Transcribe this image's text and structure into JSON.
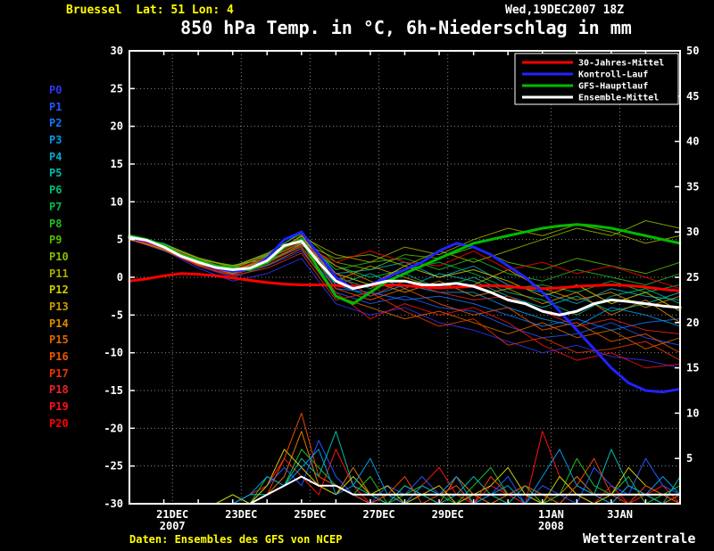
{
  "header": {
    "station": "Bruessel  Lat: 51 Lon: 4",
    "datetime": "Wed,19DEC2007 18Z",
    "title": "850 hPa Temp. in °C, 6h-Niederschlag in mm"
  },
  "footer": {
    "source": "Daten: Ensembles des GFS von NCEP",
    "brand": "Wetterzentrale"
  },
  "chart_data": {
    "type": "line",
    "title": "850 hPa Temp. in °C, 6h-Niederschlag in mm",
    "x_start": "19DEC2007 18Z",
    "x_range_days": [
      0,
      16
    ],
    "x_ticks": [
      {
        "day": 1.25,
        "label": "21DEC",
        "sub": "2007"
      },
      {
        "day": 3.25,
        "label": "23DEC",
        "sub": ""
      },
      {
        "day": 5.25,
        "label": "25DEC",
        "sub": ""
      },
      {
        "day": 7.25,
        "label": "27DEC",
        "sub": ""
      },
      {
        "day": 9.25,
        "label": "29DEC",
        "sub": ""
      },
      {
        "day": 12.25,
        "label": "1JAN",
        "sub": "2008"
      },
      {
        "day": 14.25,
        "label": "3JAN",
        "sub": ""
      }
    ],
    "temp_axis": {
      "side": "left",
      "min": -30,
      "max": 30,
      "step": 5,
      "tick_labels": [
        "30",
        "25",
        "20",
        "15",
        "10",
        "5",
        "0",
        "-5",
        "-10",
        "-15",
        "-20",
        "-25",
        "-30"
      ]
    },
    "precip_axis": {
      "side": "right",
      "min": 0,
      "max": 50,
      "step": 5,
      "tick_labels": [
        "50",
        "45",
        "40",
        "35",
        "30",
        "25",
        "20",
        "15",
        "10",
        "5"
      ]
    },
    "grid": {
      "color": "#888888",
      "dotted": true
    },
    "main_series": [
      {
        "name": "30-Jahres-Mittel",
        "color": "#ff0000",
        "width": 3,
        "interval_h": 12,
        "values": [
          -0.5,
          -0.2,
          0.2,
          0.5,
          0.4,
          0.2,
          -0.1,
          -0.4,
          -0.7,
          -0.9,
          -1.0,
          -1.0,
          -1.1,
          -1.2,
          -1.1,
          -1.0,
          -1.1,
          -1.3,
          -1.4,
          -1.3,
          -1.2,
          -1.1,
          -1.2,
          -1.4,
          -1.5,
          -1.4,
          -1.2,
          -1.1,
          -1.0,
          -1.1,
          -1.3,
          -1.6,
          -1.8
        ]
      },
      {
        "name": "Kontroll-Lauf",
        "color": "#2222ff",
        "width": 3,
        "interval_h": 12,
        "values": [
          5.2,
          4.8,
          4.0,
          3.0,
          2.0,
          1.2,
          0.8,
          1.0,
          2.5,
          5.0,
          6.0,
          3.0,
          0.0,
          -1.5,
          -1.0,
          0.0,
          1.0,
          2.0,
          3.5,
          4.5,
          4.0,
          3.0,
          1.5,
          0.0,
          -2.0,
          -4.5,
          -7.0,
          -9.5,
          -12.0,
          -14.0,
          -15.0,
          -15.2,
          -14.8
        ]
      },
      {
        "name": "GFS-Hauptlauf",
        "color": "#00bb00",
        "width": 3,
        "interval_h": 12,
        "values": [
          5.5,
          5.0,
          4.2,
          3.0,
          2.2,
          1.5,
          1.2,
          1.0,
          2.0,
          4.0,
          5.0,
          1.0,
          -2.5,
          -3.5,
          -2.0,
          -0.5,
          0.5,
          1.5,
          2.5,
          3.5,
          4.5,
          5.0,
          5.5,
          6.0,
          6.5,
          6.8,
          7.0,
          6.8,
          6.5,
          6.0,
          5.5,
          5.0,
          4.5
        ]
      },
      {
        "name": "Ensemble-Mittel",
        "color": "#ffffff",
        "width": 3,
        "interval_h": 12,
        "values": [
          5.3,
          4.9,
          4.0,
          2.8,
          2.0,
          1.3,
          1.0,
          1.2,
          2.2,
          4.2,
          4.8,
          2.0,
          -0.5,
          -1.5,
          -1.0,
          -0.5,
          -0.5,
          -1.0,
          -1.0,
          -0.8,
          -1.2,
          -2.0,
          -3.0,
          -3.5,
          -4.5,
          -5.0,
          -4.5,
          -3.5,
          -3.0,
          -3.2,
          -3.5,
          -3.8,
          -4.0
        ]
      }
    ],
    "member_series": [
      {
        "name": "P0",
        "color": "#3333ff",
        "interval_h": 24,
        "values": [
          5.0,
          3.6,
          1.2,
          -0.5,
          0.5,
          2.5,
          -3.5,
          -5.0,
          -4.0,
          -6.0,
          -7.0,
          -8.5,
          -10.0,
          -9.0,
          -10.5,
          -11.0,
          -12.0
        ]
      },
      {
        "name": "P1",
        "color": "#2255ff",
        "interval_h": 24,
        "values": [
          5.2,
          3.8,
          1.5,
          0.0,
          1.5,
          3.5,
          -2.0,
          -3.5,
          -2.5,
          -4.0,
          -4.5,
          -6.5,
          -8.0,
          -7.5,
          -6.0,
          -8.0,
          -9.0
        ]
      },
      {
        "name": "P2",
        "color": "#1177ff",
        "interval_h": 24,
        "values": [
          5.1,
          3.5,
          1.8,
          0.5,
          2.0,
          4.0,
          -1.5,
          -2.0,
          -3.0,
          -2.5,
          -3.5,
          -5.0,
          -6.5,
          -5.5,
          -7.0,
          -6.0,
          -5.5
        ]
      },
      {
        "name": "P3",
        "color": "#0099ee",
        "interval_h": 24,
        "values": [
          5.4,
          4.2,
          2.2,
          0.8,
          2.5,
          5.5,
          -1.0,
          -2.5,
          -1.0,
          -2.0,
          -2.0,
          -4.0,
          -5.5,
          -6.5,
          -4.0,
          -5.0,
          -6.5
        ]
      },
      {
        "name": "P4",
        "color": "#00aacc",
        "interval_h": 24,
        "values": [
          5.3,
          4.5,
          2.5,
          1.5,
          3.0,
          6.0,
          0.5,
          1.0,
          2.0,
          0.0,
          1.5,
          -1.0,
          -2.0,
          -3.5,
          -1.5,
          -2.5,
          -3.0
        ]
      },
      {
        "name": "P5",
        "color": "#00bbaa",
        "interval_h": 24,
        "values": [
          5.0,
          3.9,
          1.9,
          0.5,
          1.8,
          4.5,
          -1.0,
          0.5,
          -1.5,
          0.5,
          -0.5,
          -2.5,
          -4.0,
          -2.5,
          -4.5,
          -3.5,
          -2.0
        ]
      },
      {
        "name": "P6",
        "color": "#00bb77",
        "interval_h": 24,
        "values": [
          5.2,
          4.1,
          2.1,
          1.2,
          2.8,
          5.0,
          0.0,
          -1.5,
          0.5,
          -1.5,
          0.0,
          -2.0,
          -3.0,
          -5.0,
          -2.5,
          -1.5,
          -3.5
        ]
      },
      {
        "name": "P7",
        "color": "#00bb44",
        "interval_h": 24,
        "values": [
          5.5,
          4.3,
          2.4,
          1.0,
          2.0,
          4.2,
          1.5,
          0.0,
          1.0,
          2.0,
          0.5,
          -1.5,
          -1.0,
          -2.0,
          -0.5,
          -2.0,
          -1.0
        ]
      },
      {
        "name": "P8",
        "color": "#22bb22",
        "interval_h": 24,
        "values": [
          5.4,
          4.0,
          2.0,
          0.8,
          2.6,
          5.2,
          1.0,
          2.0,
          2.5,
          1.0,
          2.5,
          0.5,
          -0.5,
          1.0,
          0.0,
          -1.0,
          0.5
        ]
      },
      {
        "name": "P9",
        "color": "#55bb00",
        "interval_h": 24,
        "values": [
          5.3,
          4.4,
          2.6,
          1.4,
          3.2,
          5.8,
          2.0,
          1.0,
          3.0,
          2.5,
          4.0,
          2.0,
          1.0,
          2.5,
          1.5,
          0.5,
          2.0
        ]
      },
      {
        "name": "P10",
        "color": "#88bb00",
        "interval_h": 24,
        "values": [
          5.1,
          3.8,
          2.3,
          1.6,
          2.4,
          4.6,
          2.5,
          3.0,
          1.5,
          3.5,
          2.0,
          3.5,
          5.0,
          6.5,
          5.5,
          7.5,
          6.5
        ]
      },
      {
        "name": "P11",
        "color": "#aaaa00",
        "interval_h": 24,
        "values": [
          5.2,
          4.2,
          2.2,
          1.1,
          2.9,
          5.4,
          3.0,
          2.0,
          4.0,
          3.0,
          5.0,
          6.5,
          5.5,
          7.0,
          6.0,
          4.5,
          5.5
        ]
      },
      {
        "name": "P12",
        "color": "#cccc00",
        "interval_h": 24,
        "values": [
          5.0,
          3.7,
          1.7,
          0.6,
          2.1,
          4.4,
          0.5,
          -1.0,
          1.5,
          0.0,
          1.0,
          -0.5,
          -2.5,
          -1.0,
          -3.5,
          -2.0,
          -4.5
        ]
      },
      {
        "name": "P13",
        "color": "#cc9900",
        "interval_h": 24,
        "values": [
          5.3,
          4.1,
          2.0,
          0.9,
          2.3,
          5.6,
          -0.5,
          1.5,
          0.0,
          -1.5,
          -1.0,
          1.0,
          -1.5,
          -3.0,
          -2.0,
          -4.0,
          -2.5
        ]
      },
      {
        "name": "P14",
        "color": "#dd8800",
        "interval_h": 24,
        "values": [
          5.4,
          4.3,
          2.5,
          1.3,
          3.1,
          5.0,
          1.5,
          -0.5,
          -2.0,
          -0.5,
          -2.5,
          -1.5,
          -3.5,
          -2.0,
          -5.0,
          -3.0,
          -6.0
        ]
      },
      {
        "name": "P15",
        "color": "#dd6600",
        "interval_h": 24,
        "values": [
          5.1,
          3.9,
          1.8,
          0.4,
          1.6,
          3.8,
          -2.5,
          -4.0,
          -5.5,
          -4.5,
          -6.0,
          -7.5,
          -6.0,
          -8.0,
          -7.0,
          -9.5,
          -8.0
        ]
      },
      {
        "name": "P16",
        "color": "#ee5500",
        "interval_h": 24,
        "values": [
          5.2,
          4.0,
          2.1,
          0.7,
          2.7,
          4.9,
          -1.5,
          -3.0,
          -1.5,
          -3.5,
          -5.0,
          -4.0,
          -7.0,
          -6.0,
          -8.5,
          -7.5,
          -10.0
        ]
      },
      {
        "name": "P17",
        "color": "#ee3300",
        "interval_h": 24,
        "values": [
          5.0,
          3.6,
          1.5,
          0.2,
          1.2,
          3.2,
          -3.0,
          -2.0,
          -4.5,
          -6.5,
          -5.5,
          -9.0,
          -8.0,
          -10.0,
          -9.5,
          -8.5,
          -11.0
        ]
      },
      {
        "name": "P18",
        "color": "#ee2222",
        "interval_h": 24,
        "values": [
          5.3,
          4.2,
          2.3,
          1.0,
          2.5,
          4.7,
          0.5,
          -2.5,
          -0.5,
          -2.0,
          -3.0,
          -2.5,
          -4.5,
          -6.5,
          -5.5,
          -7.0,
          -7.5
        ]
      },
      {
        "name": "P19",
        "color": "#ff1111",
        "interval_h": 24,
        "values": [
          5.2,
          3.8,
          1.6,
          0.3,
          1.9,
          4.1,
          -2.0,
          -5.5,
          -3.5,
          -5.0,
          -4.0,
          -6.0,
          -9.0,
          -11.0,
          -10.0,
          -12.0,
          -11.5
        ]
      },
      {
        "name": "P20",
        "color": "#ff0000",
        "interval_h": 24,
        "values": [
          5.1,
          4.0,
          1.9,
          0.6,
          2.2,
          4.3,
          2.0,
          3.5,
          2.0,
          1.5,
          3.5,
          1.0,
          2.0,
          0.5,
          1.5,
          0.0,
          -1.5
        ]
      }
    ],
    "precip_series": [
      {
        "color": "#dd7700",
        "width": 1,
        "interval_h": 12,
        "values": [
          0,
          0,
          0,
          0,
          0,
          0,
          0,
          0,
          1,
          3,
          8,
          2,
          1,
          4,
          1,
          0,
          2,
          1,
          0,
          3,
          1,
          0,
          1,
          2,
          0,
          1,
          3,
          1,
          0,
          2,
          1,
          0,
          1
        ]
      },
      {
        "color": "#ff1111",
        "width": 1,
        "interval_h": 12,
        "values": [
          0,
          0,
          0,
          0,
          0,
          0,
          0,
          1,
          2,
          5,
          3,
          1,
          6,
          2,
          0,
          1,
          0,
          2,
          4,
          1,
          0,
          2,
          1,
          0,
          8,
          3,
          1,
          0,
          2,
          0,
          1,
          2,
          0
        ]
      },
      {
        "color": "#22bb22",
        "width": 1,
        "interval_h": 12,
        "values": [
          0,
          0,
          0,
          0,
          0,
          0,
          1,
          0,
          3,
          2,
          6,
          4,
          2,
          1,
          3,
          0,
          1,
          2,
          1,
          0,
          2,
          4,
          1,
          2,
          0,
          1,
          5,
          2,
          1,
          3,
          0,
          1,
          2
        ]
      },
      {
        "color": "#2255ff",
        "width": 1,
        "interval_h": 12,
        "values": [
          0,
          0,
          0,
          0,
          0,
          0,
          0,
          0,
          2,
          4,
          2,
          7,
          3,
          1,
          0,
          2,
          1,
          3,
          1,
          2,
          0,
          1,
          3,
          0,
          2,
          1,
          0,
          4,
          2,
          1,
          5,
          2,
          1
        ]
      },
      {
        "color": "#00bbaa",
        "width": 1,
        "interval_h": 12,
        "values": [
          0,
          0,
          0,
          0,
          0,
          0,
          0,
          1,
          1,
          2,
          5,
          3,
          8,
          2,
          1,
          0,
          2,
          1,
          0,
          1,
          3,
          1,
          0,
          2,
          1,
          0,
          2,
          1,
          6,
          2,
          1,
          0,
          3
        ]
      },
      {
        "color": "#cccc00",
        "width": 1,
        "interval_h": 12,
        "values": [
          0,
          0,
          0,
          0,
          0,
          0,
          1,
          0,
          2,
          6,
          4,
          2,
          1,
          3,
          1,
          2,
          0,
          1,
          2,
          0,
          1,
          2,
          4,
          1,
          0,
          3,
          1,
          0,
          1,
          4,
          2,
          1,
          0
        ]
      },
      {
        "color": "#ee4400",
        "width": 1,
        "interval_h": 12,
        "values": [
          0,
          0,
          0,
          0,
          0,
          0,
          0,
          0,
          1,
          5,
          10,
          3,
          2,
          1,
          0,
          1,
          3,
          0,
          1,
          2,
          0,
          3,
          1,
          2,
          1,
          0,
          2,
          5,
          1,
          0,
          2,
          1,
          0
        ]
      },
      {
        "color": "#0099ee",
        "width": 1,
        "interval_h": 12,
        "values": [
          0,
          0,
          0,
          0,
          0,
          0,
          0,
          1,
          3,
          2,
          4,
          6,
          1,
          2,
          5,
          1,
          0,
          2,
          1,
          3,
          0,
          1,
          2,
          0,
          3,
          6,
          2,
          1,
          0,
          2,
          1,
          3,
          1
        ]
      },
      {
        "color": "#ffffff",
        "width": 2,
        "interval_h": 12,
        "values": [
          0,
          0,
          0,
          0,
          0,
          0,
          0,
          0,
          1,
          2,
          3,
          2,
          2,
          1,
          1,
          1,
          1,
          1,
          1,
          1,
          1,
          1,
          1,
          1,
          1,
          1,
          1,
          1,
          1,
          1,
          1,
          1,
          1
        ]
      }
    ],
    "legend": {
      "position": "top-right",
      "entries": [
        {
          "label": "30-Jahres-Mittel",
          "color": "#ff0000"
        },
        {
          "label": "Kontroll-Lauf",
          "color": "#2222ff"
        },
        {
          "label": "GFS-Hauptlauf",
          "color": "#00bb00"
        },
        {
          "label": "Ensemble-Mittel",
          "color": "#ffffff"
        }
      ]
    }
  }
}
